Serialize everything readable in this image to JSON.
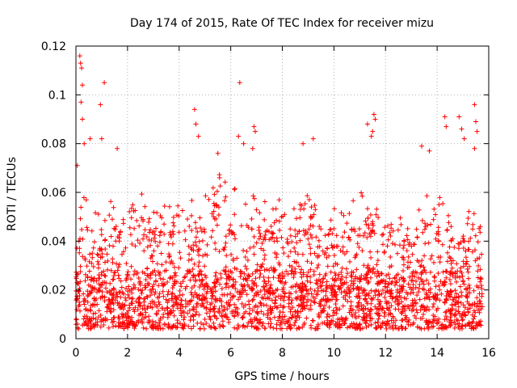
{
  "chart_data": {
    "type": "scatter",
    "title": "Day 174 of 2015, Rate Of TEC Index for receiver mizu",
    "xlabel": "GPS time / hours",
    "ylabel": "ROTI / TECUs",
    "xlim": [
      0,
      16
    ],
    "ylim": [
      0,
      0.12
    ],
    "xticks": [
      0,
      2,
      4,
      6,
      8,
      10,
      12,
      14,
      16
    ],
    "yticks": [
      0,
      0.02,
      0.04,
      0.06,
      0.08,
      0.1,
      0.12
    ],
    "xtick_labels": [
      "0",
      "2",
      "4",
      "6",
      "8",
      "10",
      "12",
      "14",
      "16"
    ],
    "ytick_labels": [
      "0",
      "0.02",
      "0.04",
      "0.06",
      "0.08",
      "0.1",
      "0.12"
    ],
    "grid": true,
    "marker": "+",
    "color": "#ff0000",
    "series": [
      {
        "name": "ROTI",
        "x_range": [
          0,
          15.75
        ],
        "n_points": 2600,
        "envelope": [
          [
            0.0,
            0.045
          ],
          [
            0.3,
            0.06
          ],
          [
            0.6,
            0.055
          ],
          [
            1.0,
            0.05
          ],
          [
            1.5,
            0.06
          ],
          [
            2.0,
            0.05
          ],
          [
            2.5,
            0.065
          ],
          [
            3.0,
            0.055
          ],
          [
            3.5,
            0.055
          ],
          [
            4.0,
            0.055
          ],
          [
            4.5,
            0.06
          ],
          [
            5.0,
            0.06
          ],
          [
            5.5,
            0.07
          ],
          [
            6.0,
            0.06
          ],
          [
            6.5,
            0.065
          ],
          [
            7.0,
            0.06
          ],
          [
            7.5,
            0.055
          ],
          [
            8.0,
            0.06
          ],
          [
            8.5,
            0.055
          ],
          [
            9.0,
            0.06
          ],
          [
            9.5,
            0.05
          ],
          [
            10.0,
            0.055
          ],
          [
            10.5,
            0.055
          ],
          [
            11.0,
            0.06
          ],
          [
            11.5,
            0.065
          ],
          [
            12.0,
            0.06
          ],
          [
            12.5,
            0.05
          ],
          [
            13.0,
            0.055
          ],
          [
            13.5,
            0.06
          ],
          [
            14.0,
            0.06
          ],
          [
            14.5,
            0.055
          ],
          [
            15.0,
            0.05
          ],
          [
            15.5,
            0.055
          ],
          [
            15.75,
            0.045
          ]
        ],
        "min_value": 0.004,
        "peaks": [
          [
            0.05,
            0.071
          ],
          [
            0.15,
            0.116
          ],
          [
            0.18,
            0.113
          ],
          [
            0.22,
            0.111
          ],
          [
            0.25,
            0.104
          ],
          [
            0.2,
            0.097
          ],
          [
            0.25,
            0.09
          ],
          [
            0.32,
            0.08
          ],
          [
            0.55,
            0.082
          ],
          [
            0.95,
            0.096
          ],
          [
            1.1,
            0.105
          ],
          [
            1.0,
            0.082
          ],
          [
            1.6,
            0.078
          ],
          [
            4.6,
            0.094
          ],
          [
            4.65,
            0.088
          ],
          [
            4.75,
            0.083
          ],
          [
            5.5,
            0.076
          ],
          [
            6.35,
            0.105
          ],
          [
            6.3,
            0.083
          ],
          [
            6.5,
            0.08
          ],
          [
            6.9,
            0.087
          ],
          [
            6.95,
            0.085
          ],
          [
            6.85,
            0.078
          ],
          [
            8.8,
            0.08
          ],
          [
            9.2,
            0.082
          ],
          [
            11.3,
            0.088
          ],
          [
            11.55,
            0.092
          ],
          [
            11.6,
            0.09
          ],
          [
            11.5,
            0.085
          ],
          [
            11.45,
            0.083
          ],
          [
            13.4,
            0.079
          ],
          [
            13.7,
            0.077
          ],
          [
            14.3,
            0.091
          ],
          [
            14.35,
            0.087
          ],
          [
            14.85,
            0.091
          ],
          [
            14.95,
            0.086
          ],
          [
            15.05,
            0.082
          ],
          [
            15.45,
            0.096
          ],
          [
            15.5,
            0.089
          ],
          [
            15.55,
            0.085
          ],
          [
            15.45,
            0.078
          ]
        ]
      }
    ]
  }
}
